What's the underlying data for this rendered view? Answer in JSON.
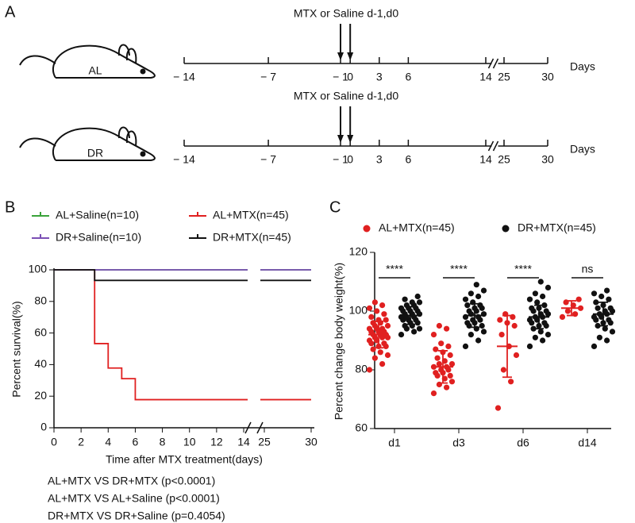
{
  "panel_labels": [
    "A",
    "B",
    "C"
  ],
  "timeline": {
    "axis_label": "Days",
    "ticks": [
      {
        "value": -14,
        "label": "− 14"
      },
      {
        "value": -7,
        "label": "− 7"
      },
      {
        "value": -1,
        "label": "− 1"
      },
      0,
      3,
      6,
      14,
      25,
      30
    ],
    "rows": [
      {
        "label": "AL",
        "annotation": "MTX or Saline d-1,d0"
      },
      {
        "label": "DR",
        "annotation": "MTX or Saline d-1,d0"
      }
    ]
  },
  "chart_data": [
    {
      "type": "line",
      "xlabel": "Time after MTX treatment(days)",
      "ylabel": "Percent survival(%)",
      "xlim": [
        0,
        30
      ],
      "xticks": [
        0,
        2,
        4,
        6,
        8,
        10,
        12,
        14,
        25,
        30
      ],
      "ylim": [
        0,
        100
      ],
      "yticks": [
        0,
        20,
        40,
        60,
        80,
        100
      ],
      "series": [
        {
          "name": "AL+Saline(n=10)",
          "color": "#3aa33a",
          "x": [
            0,
            30
          ],
          "values": [
            100,
            100
          ]
        },
        {
          "name": "AL+MTX(n=45)",
          "color": "#e02020",
          "x": [
            0,
            3,
            3,
            4,
            4,
            5,
            5,
            6,
            6,
            30
          ],
          "values": [
            100,
            100,
            53.3,
            53.3,
            37.8,
            37.8,
            31.1,
            31.1,
            17.8,
            17.8
          ]
        },
        {
          "name": "DR+Saline(n=10)",
          "color": "#7b4fb5",
          "x": [
            0,
            30
          ],
          "values": [
            100,
            100
          ]
        },
        {
          "name": "DR+MTX(n=45)",
          "color": "#111111",
          "x": [
            0,
            3,
            3,
            30
          ],
          "values": [
            100,
            100,
            93.3,
            93.3
          ]
        }
      ],
      "annotations": [
        "AL+MTX VS DR+MTX (p<0.0001)",
        "AL+MTX VS AL+Saline (p<0.0001)",
        "DR+MTX VS DR+Saline (p=0.4054)"
      ]
    },
    {
      "type": "scatter",
      "ylabel": "Percent change body weight(%)",
      "categories": [
        "d1",
        "d3",
        "d6",
        "d14"
      ],
      "ylim": [
        60,
        120
      ],
      "yticks": [
        60,
        80,
        100,
        120
      ],
      "significance": [
        "****",
        "****",
        "****",
        "ns"
      ],
      "series": [
        {
          "name": "AL+MTX(n=45)",
          "color": "#e02020",
          "values": [
            [
              80,
              82,
              84,
              85,
              86,
              87,
              88,
              88,
              89,
              89,
              90,
              90,
              91,
              91,
              91,
              92,
              92,
              92,
              93,
              93,
              93,
              94,
              94,
              94,
              95,
              95,
              96,
              96,
              97,
              97,
              98,
              99,
              100,
              101,
              102,
              103
            ],
            [
              72,
              74,
              75,
              76,
              77,
              78,
              78,
              79,
              79,
              80,
              80,
              81,
              81,
              82,
              82,
              83,
              84,
              85,
              86,
              87,
              88,
              89,
              92,
              94,
              95
            ],
            [
              67,
              76,
              80,
              85,
              88,
              92,
              95,
              96,
              97,
              98,
              99
            ],
            [
              98,
              99,
              100,
              101,
              102,
              103,
              104
            ]
          ],
          "mean": [
            92,
            81,
            88,
            101
          ],
          "sd": [
            4.5,
            5.5,
            10.5,
            2.5
          ]
        },
        {
          "name": "DR+MTX(n=45)",
          "color": "#111111",
          "values": [
            [
              92,
              93,
              94,
              94,
              95,
              95,
              96,
              96,
              97,
              97,
              97,
              98,
              98,
              98,
              99,
              99,
              99,
              100,
              100,
              100,
              101,
              101,
              101,
              102,
              102,
              103,
              103,
              104,
              105
            ],
            [
              88,
              90,
              92,
              93,
              94,
              95,
              95,
              96,
              96,
              97,
              97,
              98,
              98,
              99,
              99,
              100,
              100,
              101,
              101,
              102,
              102,
              103,
              104,
              105,
              106,
              107,
              109
            ],
            [
              88,
              90,
              91,
              92,
              93,
              94,
              95,
              95,
              96,
              96,
              97,
              97,
              98,
              98,
              99,
              99,
              100,
              100,
              101,
              101,
              102,
              103,
              104,
              105,
              106,
              108,
              110
            ],
            [
              88,
              90,
              91,
              93,
              94,
              95,
              96,
              96,
              97,
              97,
              98,
              98,
              99,
              99,
              100,
              100,
              101,
              101,
              102,
              103,
              104,
              105,
              106,
              107
            ]
          ],
          "mean": [
            98.5,
            98.5,
            98,
            99
          ],
          "sd": [
            3,
            4,
            4,
            4
          ]
        }
      ]
    }
  ]
}
